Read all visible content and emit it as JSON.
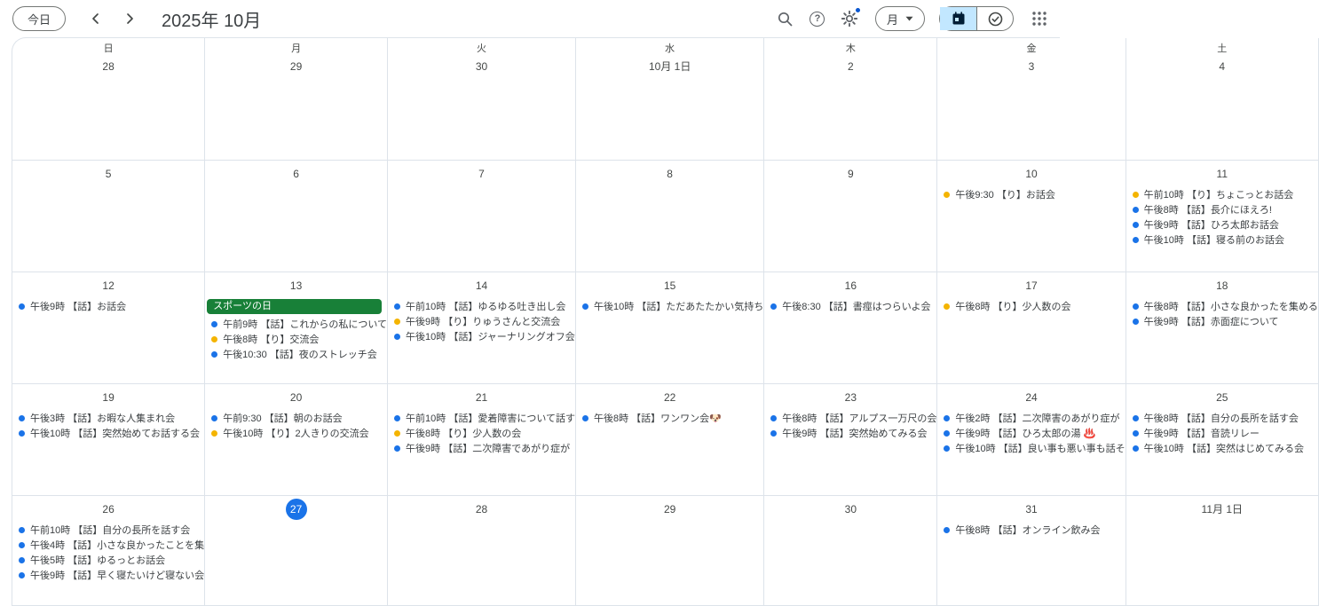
{
  "header": {
    "today_button": "今日",
    "title": "2025年 10月",
    "view_selector": "月",
    "icons": {
      "help_glyph": "?"
    }
  },
  "colors": {
    "event_blue": "#1a73e8",
    "event_yellow": "#f4b400",
    "holiday_green": "#188038",
    "today_blue": "#1a73e8",
    "segment_active_bg": "#c2e7ff"
  },
  "day_headers": [
    "日",
    "月",
    "火",
    "水",
    "木",
    "金",
    "土"
  ],
  "weeks": [
    {
      "days": [
        {
          "date": "28",
          "events": []
        },
        {
          "date": "29",
          "events": []
        },
        {
          "date": "30",
          "events": []
        },
        {
          "date": "10月 1日",
          "events": []
        },
        {
          "date": "2",
          "events": []
        },
        {
          "date": "3",
          "events": []
        },
        {
          "date": "4",
          "events": []
        }
      ]
    },
    {
      "days": [
        {
          "date": "5",
          "events": []
        },
        {
          "date": "6",
          "events": []
        },
        {
          "date": "7",
          "events": []
        },
        {
          "date": "8",
          "events": []
        },
        {
          "date": "9",
          "events": []
        },
        {
          "date": "10",
          "events": [
            {
              "dot": "event_yellow",
              "text": "午後9:30 【り】お話会"
            }
          ]
        },
        {
          "date": "11",
          "events": [
            {
              "dot": "event_yellow",
              "text": "午前10時 【り】ちょこっとお話会"
            },
            {
              "dot": "event_blue",
              "text": "午後8時 【話】長介にほえろ!"
            },
            {
              "dot": "event_blue",
              "text": "午後9時 【話】ひろ太郎お話会"
            },
            {
              "dot": "event_blue",
              "text": "午後10時 【話】寝る前のお話会"
            }
          ]
        }
      ]
    },
    {
      "days": [
        {
          "date": "12",
          "events": [
            {
              "dot": "event_blue",
              "text": "午後9時 【話】お話会"
            }
          ]
        },
        {
          "date": "13",
          "events": [
            {
              "type": "banner",
              "text": "スポーツの日"
            },
            {
              "dot": "event_blue",
              "text": "午前9時 【話】これからの私について"
            },
            {
              "dot": "event_yellow",
              "text": "午後8時 【り】交流会"
            },
            {
              "dot": "event_blue",
              "text": "午後10:30 【話】夜のストレッチ会"
            }
          ]
        },
        {
          "date": "14",
          "events": [
            {
              "dot": "event_blue",
              "text": "午前10時 【話】ゆるゆる吐き出し会"
            },
            {
              "dot": "event_yellow",
              "text": "午後9時 【り】りゅうさんと交流会"
            },
            {
              "dot": "event_blue",
              "text": "午後10時 【話】ジャーナリングオフ会"
            }
          ]
        },
        {
          "date": "15",
          "events": [
            {
              "dot": "event_blue",
              "text": "午後10時 【話】ただあたたかい気持ち"
            }
          ]
        },
        {
          "date": "16",
          "events": [
            {
              "dot": "event_blue",
              "text": "午後8:30 【話】書痙はつらいよ会"
            }
          ]
        },
        {
          "date": "17",
          "events": [
            {
              "dot": "event_yellow",
              "text": "午後8時 【り】少人数の会"
            }
          ]
        },
        {
          "date": "18",
          "events": [
            {
              "dot": "event_blue",
              "text": "午後8時 【話】小さな良かったを集める"
            },
            {
              "dot": "event_blue",
              "text": "午後9時 【話】赤面症について"
            }
          ]
        }
      ]
    },
    {
      "days": [
        {
          "date": "19",
          "events": [
            {
              "dot": "event_blue",
              "text": "午後3時 【話】お暇な人集まれ会"
            },
            {
              "dot": "event_blue",
              "text": "午後10時 【話】突然始めてお話する会"
            }
          ]
        },
        {
          "date": "20",
          "events": [
            {
              "dot": "event_blue",
              "text": "午前9:30 【話】朝のお話会"
            },
            {
              "dot": "event_yellow",
              "text": "午後10時 【り】2人きりの交流会"
            }
          ]
        },
        {
          "date": "21",
          "events": [
            {
              "dot": "event_blue",
              "text": "午前10時 【話】愛着障害について話す"
            },
            {
              "dot": "event_yellow",
              "text": "午後8時 【り】少人数の会"
            },
            {
              "dot": "event_blue",
              "text": "午後9時 【話】二次障害であがり症が"
            }
          ]
        },
        {
          "date": "22",
          "events": [
            {
              "dot": "event_blue",
              "text": "午後8時 【話】ワンワン会🐶"
            }
          ]
        },
        {
          "date": "23",
          "events": [
            {
              "dot": "event_blue",
              "text": "午後8時 【話】アルプス一万尺の会"
            },
            {
              "dot": "event_blue",
              "text": "午後9時 【話】突然始めてみる会"
            }
          ]
        },
        {
          "date": "24",
          "events": [
            {
              "dot": "event_blue",
              "text": "午後2時 【話】二次障害のあがり症が"
            },
            {
              "dot": "event_blue",
              "text": "午後9時 【話】ひろ太郎の湯 ♨️"
            },
            {
              "dot": "event_blue",
              "text": "午後10時 【話】良い事も悪い事も話そ"
            }
          ]
        },
        {
          "date": "25",
          "events": [
            {
              "dot": "event_blue",
              "text": "午後8時 【話】自分の長所を話す会"
            },
            {
              "dot": "event_blue",
              "text": "午後9時 【話】音読リレー"
            },
            {
              "dot": "event_blue",
              "text": "午後10時 【話】突然はじめてみる会"
            }
          ]
        }
      ]
    },
    {
      "days": [
        {
          "date": "26",
          "events": [
            {
              "dot": "event_blue",
              "text": "午前10時 【話】自分の長所を話す会"
            },
            {
              "dot": "event_blue",
              "text": "午後4時 【話】小さな良かったことを集"
            },
            {
              "dot": "event_blue",
              "text": "午後5時 【話】ゆるっとお話会"
            },
            {
              "dot": "event_blue",
              "text": "午後9時 【話】早く寝たいけど寝ない会"
            }
          ]
        },
        {
          "date": "27",
          "today": true,
          "events": []
        },
        {
          "date": "28",
          "events": []
        },
        {
          "date": "29",
          "events": []
        },
        {
          "date": "30",
          "events": []
        },
        {
          "date": "31",
          "events": [
            {
              "dot": "event_blue",
              "text": "午後8時 【話】オンライン飲み会"
            }
          ]
        },
        {
          "date": "11月 1日",
          "events": []
        }
      ]
    }
  ]
}
